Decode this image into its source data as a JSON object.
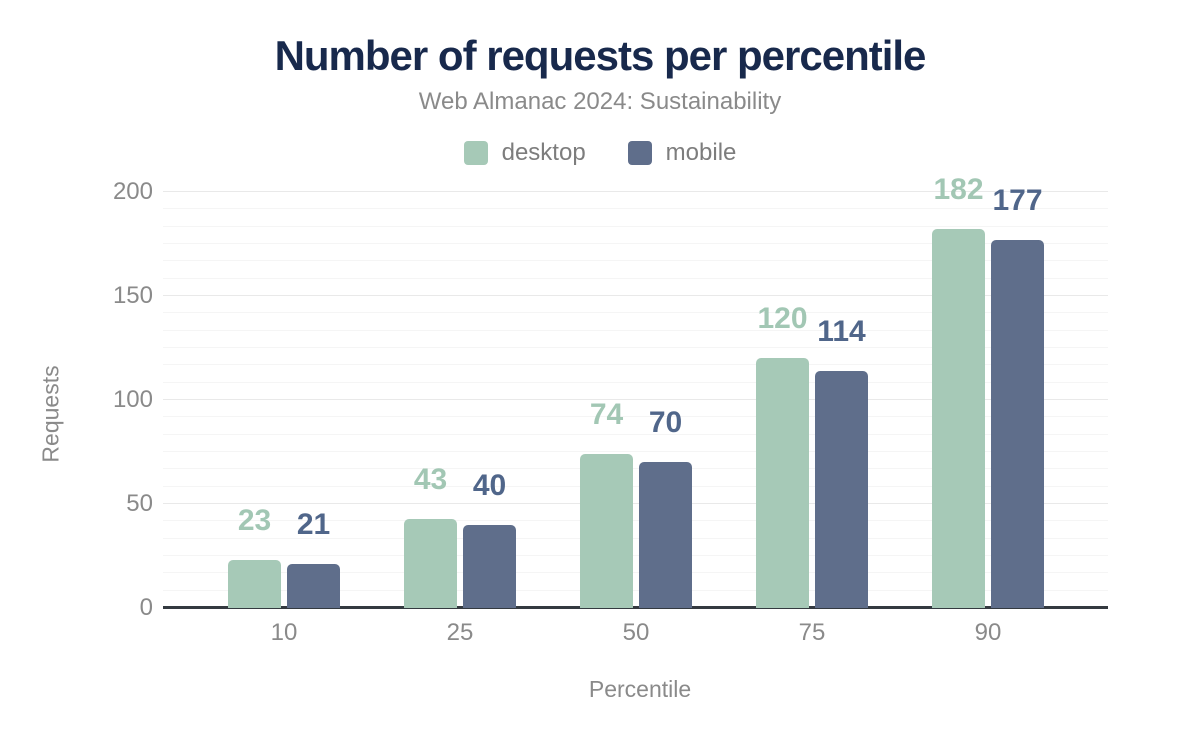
{
  "chart_data": {
    "type": "bar",
    "title": "Number of requests per percentile",
    "subtitle": "Web Almanac 2024: Sustainability",
    "categories": [
      "10",
      "25",
      "50",
      "75",
      "90"
    ],
    "series": [
      {
        "name": "desktop",
        "color": "#a6c9b7",
        "label_color": "#a2c7b4",
        "values": [
          23,
          43,
          74,
          120,
          182
        ]
      },
      {
        "name": "mobile",
        "color": "#5f6e8b",
        "label_color": "#50668a",
        "values": [
          21,
          40,
          70,
          114,
          177
        ]
      }
    ],
    "xlabel": "Percentile",
    "ylabel": "Requests",
    "ylim": [
      0,
      200
    ],
    "yticks": [
      0,
      50,
      100,
      150,
      200
    ],
    "grid": true,
    "minor_grid_divisions_per_major": 6,
    "legend_position": "top",
    "data_labels_shown": true
  },
  "colors": {
    "background": "#ffffff",
    "title": "#18294c",
    "subtitle": "#8a8a8a",
    "legend_text": "#7d7d7d",
    "tick_text": "#8a8a8a",
    "grid_major": "#e9e9e9",
    "grid_minor": "#f5f5f5",
    "axis_line": "#343a40",
    "desktop": "#a6c9b7",
    "mobile": "#5f6e8b"
  }
}
